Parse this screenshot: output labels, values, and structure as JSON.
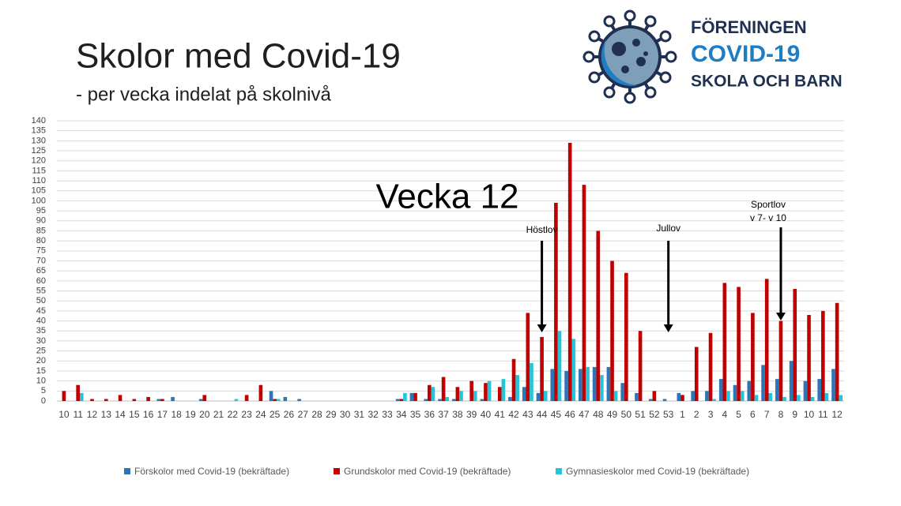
{
  "title": "Skolor med Covid-19",
  "subtitle": "- per vecka indelat på skolnivå",
  "logo": [
    "FÖRENINGEN",
    "COVID-19",
    "SKOLA OCH BARN"
  ],
  "chart_data": {
    "type": "bar",
    "categories": [
      "10",
      "11",
      "12",
      "13",
      "14",
      "15",
      "16",
      "17",
      "18",
      "19",
      "20",
      "21",
      "22",
      "23",
      "24",
      "25",
      "26",
      "27",
      "28",
      "29",
      "30",
      "31",
      "32",
      "33",
      "34",
      "35",
      "36",
      "37",
      "38",
      "39",
      "40",
      "41",
      "42",
      "43",
      "44",
      "45",
      "46",
      "47",
      "48",
      "49",
      "50",
      "51",
      "52",
      "53",
      "1",
      "2",
      "3",
      "4",
      "5",
      "6",
      "7",
      "8",
      "9",
      "10",
      "11",
      "12"
    ],
    "series": [
      {
        "name": "Förskolor med Covid-19 (bekräftade)",
        "color": "#2e75b6",
        "values": [
          0,
          0,
          0,
          0,
          0,
          0,
          0,
          1,
          2,
          0,
          1,
          0,
          0,
          0,
          0,
          5,
          2,
          1,
          0,
          0,
          0,
          0,
          0,
          0,
          1,
          4,
          1,
          1,
          1,
          0,
          1,
          0,
          2,
          7,
          4,
          16,
          15,
          16,
          17,
          17,
          9,
          4,
          1,
          1,
          4,
          5,
          5,
          11,
          8,
          10,
          18,
          11,
          20,
          10,
          11,
          16
        ]
      },
      {
        "name": "Grundskolor med Covid-19 (bekräftade)",
        "color": "#c00000",
        "values": [
          5,
          8,
          1,
          1,
          3,
          1,
          2,
          1,
          0,
          0,
          3,
          0,
          0,
          3,
          8,
          1,
          0,
          0,
          0,
          0,
          0,
          0,
          0,
          0,
          1,
          4,
          8,
          12,
          7,
          10,
          9,
          7,
          21,
          44,
          32,
          99,
          129,
          108,
          85,
          70,
          64,
          35,
          5,
          0,
          3,
          27,
          34,
          59,
          57,
          44,
          61,
          40,
          56,
          43,
          45,
          49
        ]
      },
      {
        "name": "Gymnasieskolor med Covid-19 (bekräftade)",
        "color": "#25c5d8",
        "values": [
          0,
          4,
          0,
          0,
          0,
          0,
          0,
          0,
          0,
          0,
          0,
          0,
          1,
          0,
          0,
          1,
          0,
          0,
          0,
          0,
          0,
          0,
          0,
          0,
          4,
          0,
          7,
          2,
          5,
          5,
          10,
          11,
          13,
          19,
          5,
          35,
          31,
          17,
          13,
          5,
          0,
          0,
          0,
          0,
          0,
          0,
          1,
          5,
          5,
          3,
          4,
          2,
          3,
          2,
          4,
          3
        ]
      }
    ],
    "ylim": [
      0,
      140
    ],
    "yticks": [
      0,
      5,
      10,
      15,
      20,
      25,
      30,
      35,
      40,
      45,
      50,
      55,
      60,
      65,
      70,
      75,
      80,
      85,
      90,
      95,
      100,
      105,
      110,
      115,
      120,
      125,
      130,
      135,
      140
    ],
    "grid": true,
    "annotations": [
      "Vecka 12",
      "Höstlov",
      "Jullov",
      "Sportlov",
      "v 7- v 10"
    ]
  }
}
